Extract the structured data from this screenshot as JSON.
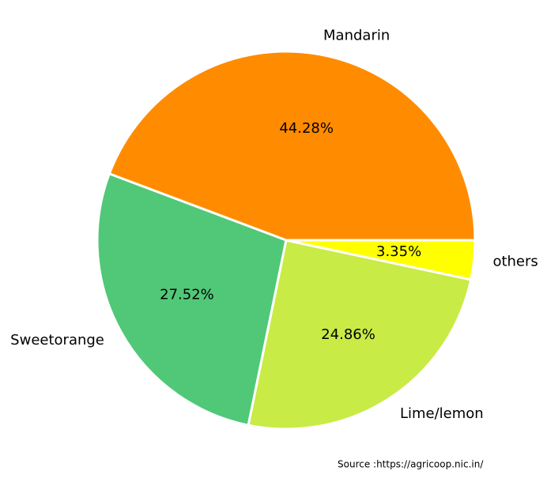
{
  "chart_data": {
    "type": "pie",
    "categories": [
      "Mandarin",
      "Sweetorange",
      "Lime/lemon",
      "others"
    ],
    "values": [
      44.28,
      27.52,
      24.86,
      3.35
    ],
    "value_labels": [
      "44.28%",
      "27.52%",
      "24.86%",
      "3.35%"
    ],
    "colors": [
      "#ff8c00",
      "#50c878",
      "#c8eb46",
      "#ffff00"
    ],
    "annotation": "Source :https://agricoop.nic.in/"
  }
}
